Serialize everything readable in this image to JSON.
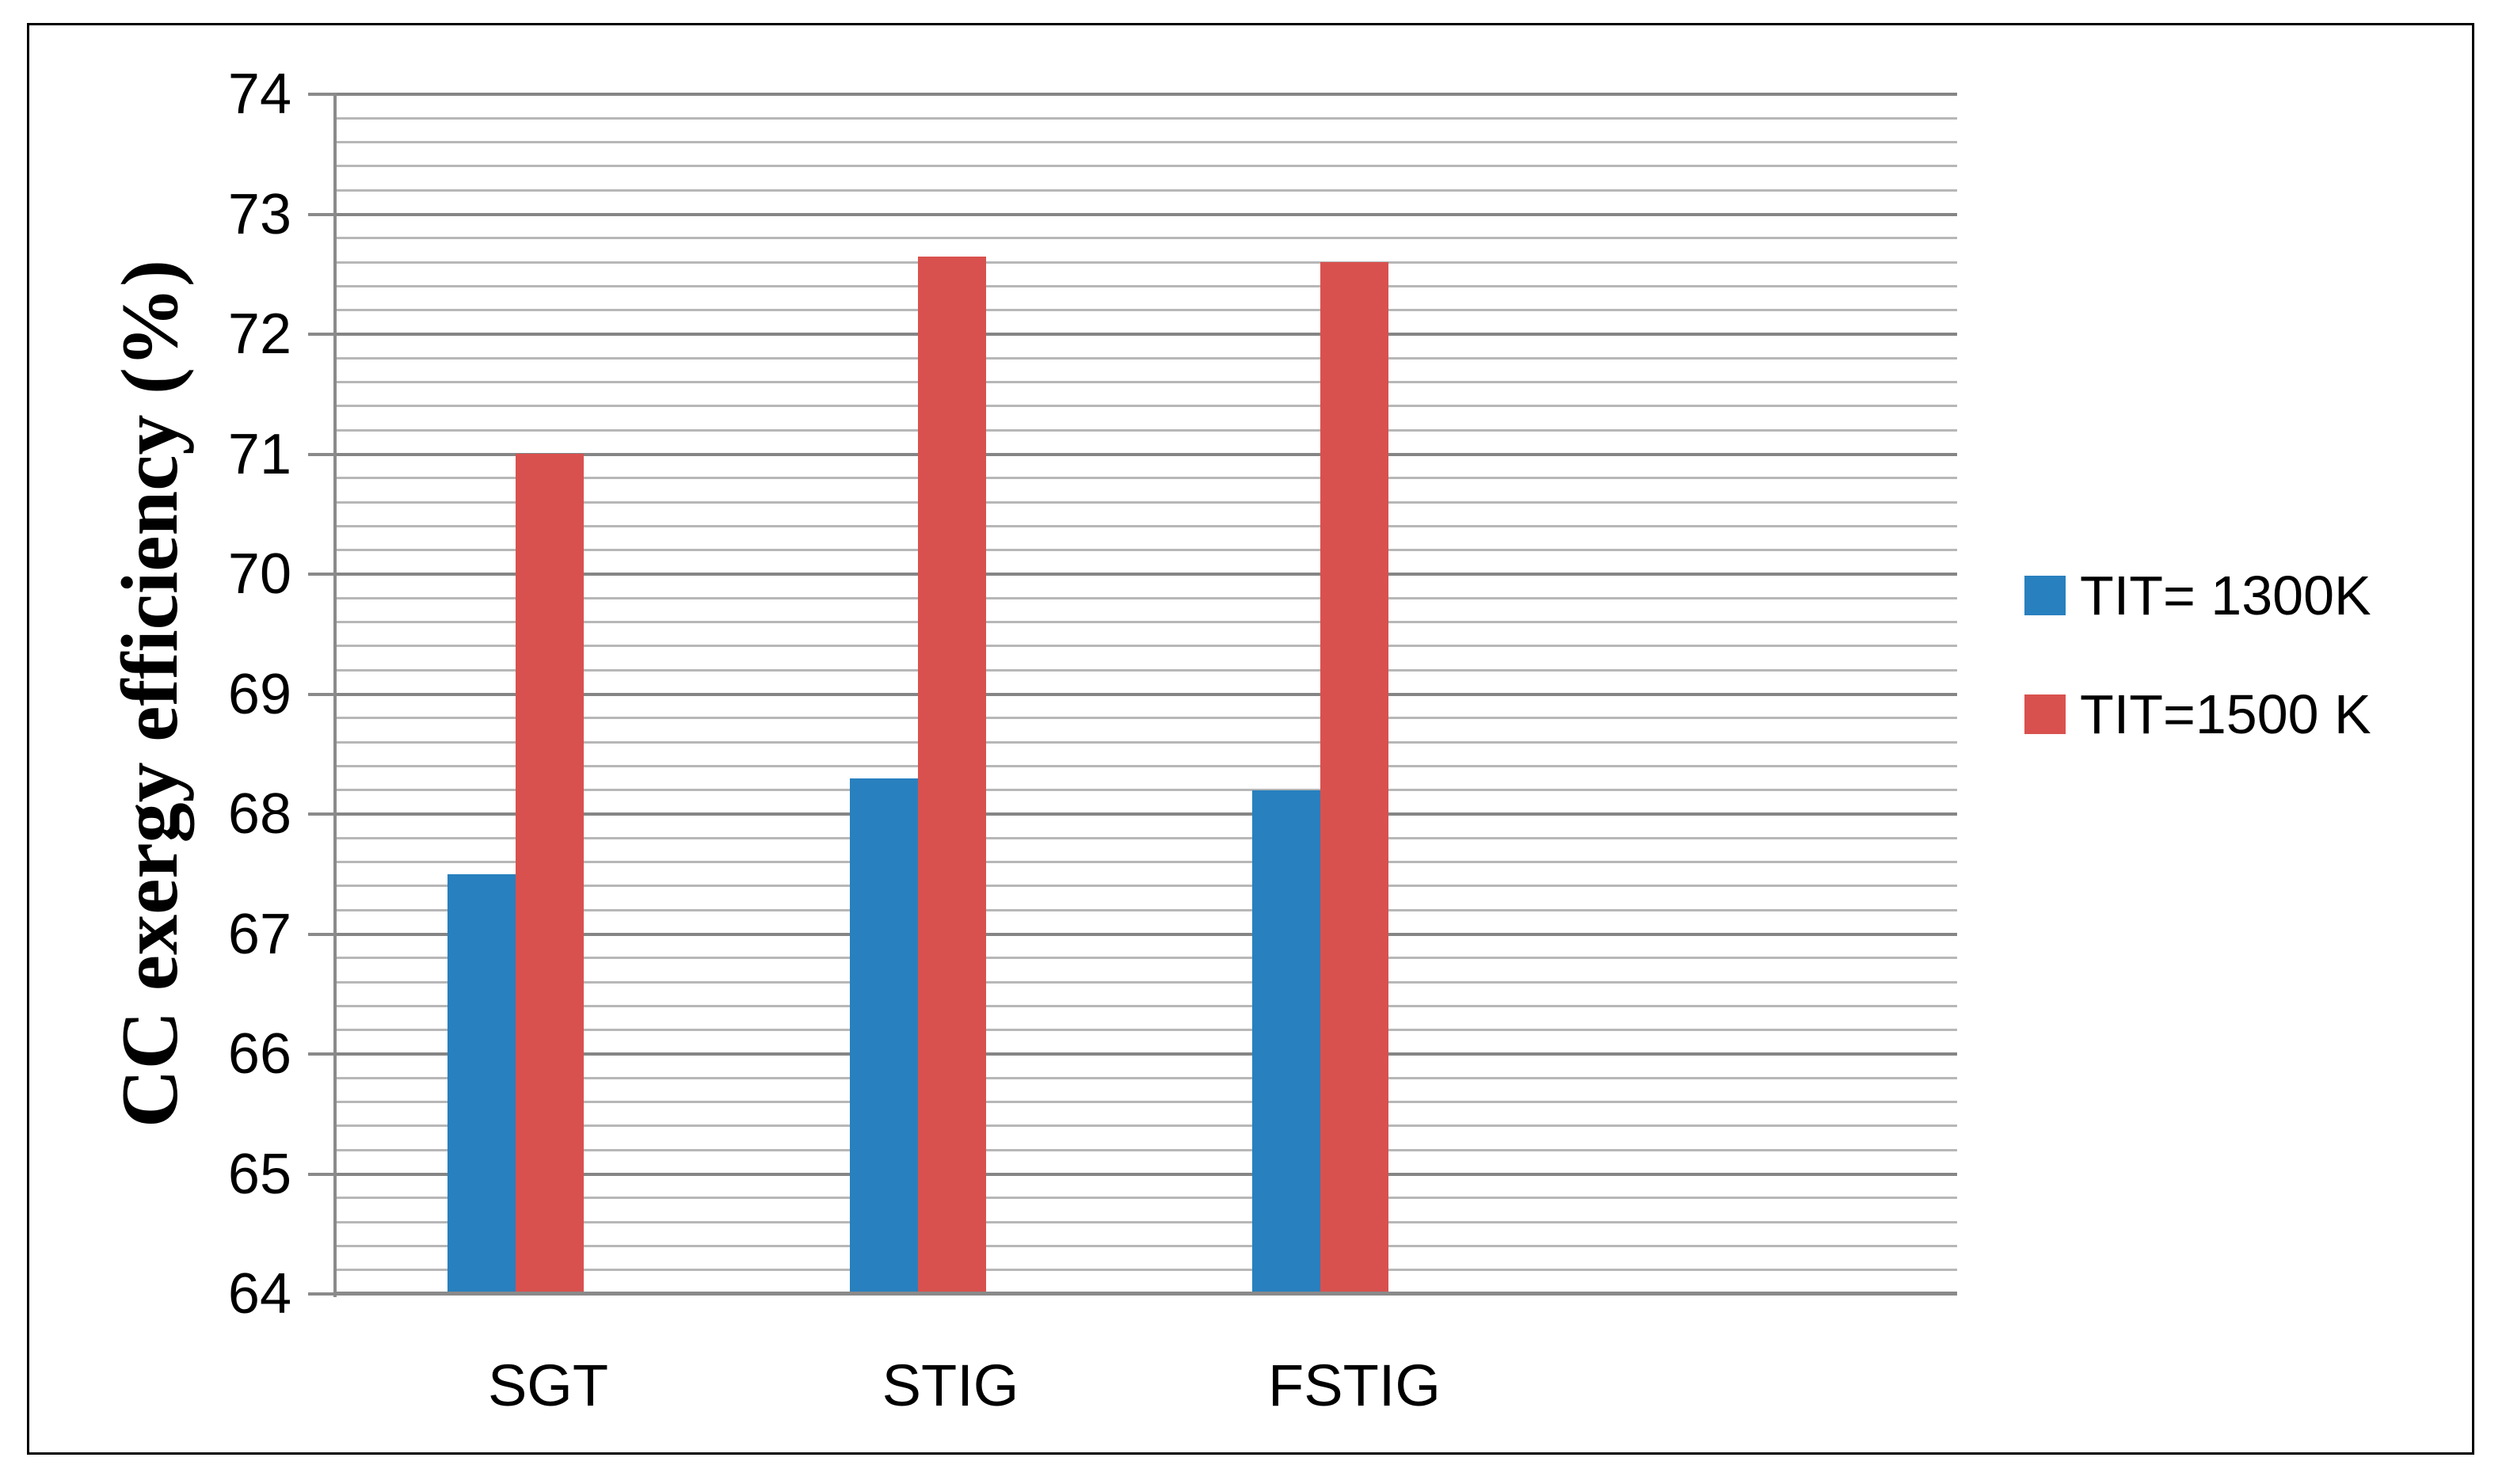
{
  "chart_data": {
    "type": "bar",
    "title": "",
    "categories": [
      "SGT",
      "STIG",
      "FSTIG"
    ],
    "series": [
      {
        "name": "TIT= 1300K",
        "color": "#2880BE",
        "values": [
          67.5,
          68.3,
          68.2
        ]
      },
      {
        "name": "TIT=1500 K",
        "color": "#D9514E",
        "values": [
          71.0,
          72.65,
          72.6
        ]
      }
    ],
    "xlabel": "",
    "ylabel": "CC exergy efficiency (%)",
    "ylim": [
      64,
      74
    ],
    "y_major_step": 1,
    "y_minor_step": 0.2,
    "y_ticks": [
      "64",
      "65",
      "66",
      "67",
      "68",
      "69",
      "70",
      "71",
      "72",
      "73",
      "74"
    ],
    "grid": "horizontal major and minor gridlines on, no vertical gridlines",
    "legend_position": "right middle, outside plot"
  },
  "style": {
    "background": "#ffffff",
    "outer_border_color": "#000000",
    "major_gridline_color": "#858585",
    "minor_gridline_color": "#b7b7b7",
    "axis_line_color": "#8a8a8a",
    "text_color": "#000000"
  }
}
